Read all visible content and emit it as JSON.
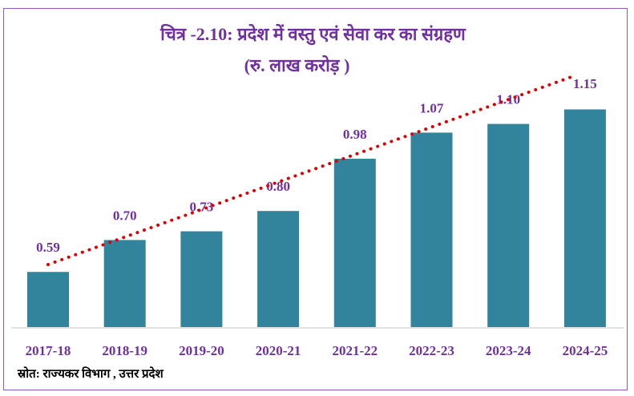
{
  "chart_data": {
    "type": "bar",
    "title": "चित्र -2.10: प्रदेश में  वस्तु एवं सेवा कर का संग्रहण",
    "subtitle": "(रु. लाख करोड़ )",
    "categories": [
      "2017-18",
      "2018-19",
      "2019-20",
      "2020-21",
      "2021-22",
      "2022-23",
      "2023-24",
      "2024-25"
    ],
    "values": [
      0.59,
      0.7,
      0.73,
      0.8,
      0.98,
      1.07,
      1.1,
      1.15
    ],
    "data_labels": [
      "0.59",
      "0.70",
      "0.73",
      "0.80",
      "0.98",
      "1.07",
      "1.10",
      "1.15"
    ],
    "xlabel": "",
    "ylabel": "",
    "ylim": [
      0.4,
      1.2
    ],
    "grid": false,
    "trendline": {
      "type": "linear",
      "style": "dotted",
      "color": "#e00000"
    },
    "colors": {
      "bar": "#31849b",
      "label": "#7030a0",
      "title": "#7030a0"
    }
  },
  "source": "स्रोत: राज्यकर विभाग , उत्तर प्रदेश"
}
